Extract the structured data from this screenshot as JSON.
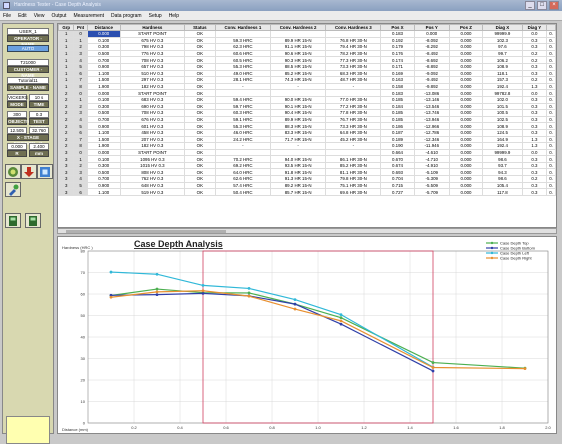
{
  "window": {
    "title": "Hardness Tester - Case Depth Analysis"
  },
  "menu": [
    "File",
    "Edit",
    "View",
    "Output",
    "Measurement",
    "Data program",
    "Setup",
    "Help"
  ],
  "left_panel": {
    "operator_id": "USER_1",
    "operator_label": "OPERATOR - NAME",
    "mode": "AUTO",
    "part_id": "T21000",
    "customer_label": "CUSTOMER - NAME",
    "sample_id": "Tutorial11",
    "sample_label": "SAMPLE - NAME",
    "scale": "VICKERS",
    "dwell": "10 s",
    "mode_label": "MODE",
    "time_label": "TIME",
    "load": "300",
    "load2": "0.3",
    "objective_label": "OBJECTIVE",
    "test_force_label": "TEST FORCE",
    "xpos": "12.505",
    "ypos": "32.760",
    "stage_label": "X - STAGE POSITION - Y",
    "zero": "0.000",
    "zpos": "2.400",
    "zlabel": "R",
    "zunit": "mm"
  },
  "table": {
    "columns": [
      "Grp",
      "Pnt",
      "Distance",
      "Hardness",
      "Status",
      "Conv. Hardness 1",
      "Conv. Hardness 2",
      "Conv. Hardness 3",
      "Pos X",
      "Pos Y",
      "Pos Z",
      "Diag X",
      "Diag Y",
      ""
    ],
    "rows": [
      [
        "1",
        "0",
        "0.000",
        "START POINT",
        "OK",
        "",
        "",
        "",
        "0.183",
        "0.000",
        "0.000",
        "99999.9",
        "0.0",
        "0."
      ],
      [
        "1",
        "1",
        "0.100",
        "675 HV 0.3",
        "OK",
        "59.3 HRC",
        "89.9 HR 15-N",
        "76.8 HR 30-N",
        "0.192",
        "-8.092",
        "0.000",
        "102.3",
        "0.3",
        "0."
      ],
      [
        "1",
        "2",
        "0.300",
        "798 HV 0.3",
        "OK",
        "62.3 HRC",
        "91.1 HR 15-N",
        "79.4 HR 30-N",
        "0.179",
        "-8.292",
        "0.000",
        "97.6",
        "0.3",
        "0."
      ],
      [
        "1",
        "3",
        "0.500",
        "776 HV 0.3",
        "OK",
        "60.6 HRC",
        "90.6 HR 15-N",
        "78.2 HR 30-N",
        "0.176",
        "-8.492",
        "0.000",
        "99.7",
        "0.2",
        "0."
      ],
      [
        "1",
        "4",
        "0.700",
        "708 HV 0.3",
        "OK",
        "60.5 HRC",
        "90.3 HR 15-N",
        "77.3 HR 30-N",
        "0.174",
        "-8.692",
        "0.000",
        "106.2",
        "0.2",
        "0."
      ],
      [
        "1",
        "5",
        "0.900",
        "657 HV 0.3",
        "OK",
        "55.3 HRC",
        "88.5 HR 15-N",
        "73.3 HR 30-N",
        "0.171",
        "-8.892",
        "0.000",
        "108.9",
        "0.3",
        "0."
      ],
      [
        "1",
        "6",
        "1.100",
        "510 HV 0.3",
        "OK",
        "49.0 HRC",
        "85.2 HR 15-N",
        "68.3 HR 30-N",
        "0.169",
        "-9.092",
        "0.000",
        "118.1",
        "0.3",
        "0."
      ],
      [
        "1",
        "7",
        "1.500",
        "297 HV 0.3",
        "OK",
        "28.1 HRC",
        "74.3 HR 15-N",
        "48.7 HR 30-N",
        "0.163",
        "-9.492",
        "0.000",
        "157.3",
        "0.2",
        "0."
      ],
      [
        "1",
        "8",
        "1.900",
        "182 HV 0.3",
        "OK",
        "-",
        "-",
        "-",
        "0.158",
        "-9.892",
        "0.000",
        "192.4",
        "1.3",
        "0."
      ],
      [
        "2",
        "0",
        "0.000",
        "START POINT",
        "OK",
        "",
        "",
        "",
        "0.183",
        "-13.086",
        "0.000",
        "99782.8",
        "0.0",
        "0."
      ],
      [
        "2",
        "1",
        "0.100",
        "683 HV 0.3",
        "OK",
        "59.4 HRC",
        "90.0 HR 15-N",
        "77.0 HR 30-N",
        "0.185",
        "-13.146",
        "0.000",
        "102.0",
        "0.3",
        "0."
      ],
      [
        "2",
        "2",
        "0.300",
        "690 HV 0.3",
        "OK",
        "59.7 HRC",
        "90.1 HR 15-N",
        "77.2 HR 30-N",
        "0.184",
        "-13.546",
        "0.000",
        "101.5",
        "0.3",
        "0."
      ],
      [
        "2",
        "3",
        "0.500",
        "708 HV 0.3",
        "OK",
        "60.3 HRC",
        "90.4 HR 15-N",
        "77.8 HR 30-N",
        "0.185",
        "-13.746",
        "0.000",
        "100.5",
        "0.3",
        "0."
      ],
      [
        "2",
        "4",
        "0.700",
        "676 HV 0.3",
        "OK",
        "59.1 HRC",
        "89.9 HR 15-N",
        "76.7 HR 30-N",
        "0.185",
        "-13.946",
        "0.000",
        "102.5",
        "0.3",
        "0."
      ],
      [
        "2",
        "5",
        "0.900",
        "601 HV 0.3",
        "OK",
        "55.3 HRC",
        "88.3 HR 15-N",
        "73.3 HR 30-N",
        "0.186",
        "-12.966",
        "0.000",
        "108.9",
        "0.3",
        "0."
      ],
      [
        "2",
        "6",
        "1.100",
        "458 HV 0.3",
        "OK",
        "46.0 HRC",
        "83.3 HR 15-N",
        "64.8 HR 30-N",
        "0.187",
        "-12.786",
        "0.000",
        "124.5",
        "0.3",
        "0."
      ],
      [
        "2",
        "7",
        "1.500",
        "207 HV 0.3",
        "OK",
        "24.2 HRC",
        "71.7 HR 15-N",
        "45.2 HR 30-N",
        "0.189",
        "-12.346",
        "0.000",
        "164.9",
        "1.3",
        "0."
      ],
      [
        "2",
        "8",
        "1.900",
        "182 HV 0.3",
        "OK",
        "-",
        "-",
        "-",
        "0.190",
        "-11.946",
        "0.000",
        "192.4",
        "1.3",
        "0."
      ],
      [
        "3",
        "0",
        "0.000",
        "START POINT",
        "OK",
        "",
        "",
        "",
        "0.664",
        "-4.610",
        "0.000",
        "99999.9",
        "0.0",
        "0."
      ],
      [
        "3",
        "1",
        "0.100",
        "1095 HV 0.3",
        "OK",
        "70.2 HRC",
        "94.0 HR 15-N",
        "86.1 HR 30-N",
        "0.670",
        "-4.710",
        "0.000",
        "98.6",
        "0.3",
        "0."
      ],
      [
        "3",
        "2",
        "0.300",
        "1015 HV 0.3",
        "OK",
        "69.2 HRC",
        "93.5 HR 15-N",
        "85.2 HR 30-N",
        "0.674",
        "-4.910",
        "0.000",
        "93.7",
        "0.3",
        "0."
      ],
      [
        "3",
        "3",
        "0.500",
        "808 HV 0.3",
        "OK",
        "64.0 HRC",
        "91.8 HR 15-N",
        "81.1 HR 30-N",
        "0.693",
        "-5.109",
        "0.000",
        "94.3",
        "0.3",
        "0."
      ],
      [
        "3",
        "4",
        "0.700",
        "762 HV 0.3",
        "OK",
        "62.6 HRC",
        "91.3 HR 15-N",
        "79.8 HR 30-N",
        "0.704",
        "-5.309",
        "0.000",
        "98.6",
        "0.2",
        "0."
      ],
      [
        "3",
        "5",
        "0.900",
        "648 HV 0.3",
        "OK",
        "57.4 HRC",
        "89.2 HR 15-N",
        "75.1 HR 30-N",
        "0.715",
        "-5.509",
        "0.000",
        "105.4",
        "0.3",
        "0."
      ],
      [
        "3",
        "6",
        "1.100",
        "519 HV 0.3",
        "OK",
        "50.4 HRC",
        "85.7 HR 15-N",
        "69.6 HR 30-N",
        "0.727",
        "-5.709",
        "0.000",
        "117.8",
        "0.3",
        "0."
      ]
    ]
  },
  "chart_data": {
    "type": "line",
    "title": "Case Depth Analysis",
    "ylabel": "Hardness (HRC )",
    "xlabel": "Distance (mm)",
    "xlim": [
      0,
      2.0
    ],
    "ylim": [
      0,
      80
    ],
    "yticks": [
      0,
      10,
      20,
      30,
      40,
      50,
      60,
      70,
      80
    ],
    "xticks": [
      0.2,
      0.4,
      0.6,
      0.8,
      1.0,
      1.2,
      1.4,
      1.6,
      1.8,
      2.0
    ],
    "grid": true,
    "legend_position": "top-right",
    "threshold_box": {
      "x_start": 0.5,
      "x_end": 1.5,
      "y_top": 80
    },
    "series": [
      {
        "name": "Case Depth Top",
        "color": "#4caf50",
        "x": [
          0.1,
          0.3,
          0.5,
          0.7,
          0.9,
          1.1,
          1.5,
          1.9
        ],
        "y": [
          59.3,
          62.3,
          60.6,
          60.5,
          55.3,
          49.0,
          28.1,
          25.5
        ]
      },
      {
        "name": "Case Depth Bottom",
        "color": "#3040a8",
        "x": [
          0.1,
          0.3,
          0.5,
          0.7,
          0.9,
          1.1,
          1.5
        ],
        "y": [
          59.4,
          59.7,
          60.3,
          59.1,
          55.3,
          46.0,
          24.2
        ]
      },
      {
        "name": "Case Depth Left",
        "color": "#30b8d8",
        "x": [
          0.1,
          0.3,
          0.5,
          0.7,
          0.9,
          1.1,
          1.5
        ],
        "y": [
          70.2,
          69.2,
          64.0,
          62.6,
          57.4,
          50.4,
          26.0
        ]
      },
      {
        "name": "Case Depth Right",
        "color": "#e89030",
        "x": [
          0.1,
          0.3,
          0.5,
          0.7,
          0.9,
          1.1,
          1.5,
          1.9
        ],
        "y": [
          58.5,
          61.0,
          61.5,
          59.0,
          53.0,
          47.5,
          25.8,
          25.3
        ]
      }
    ]
  }
}
